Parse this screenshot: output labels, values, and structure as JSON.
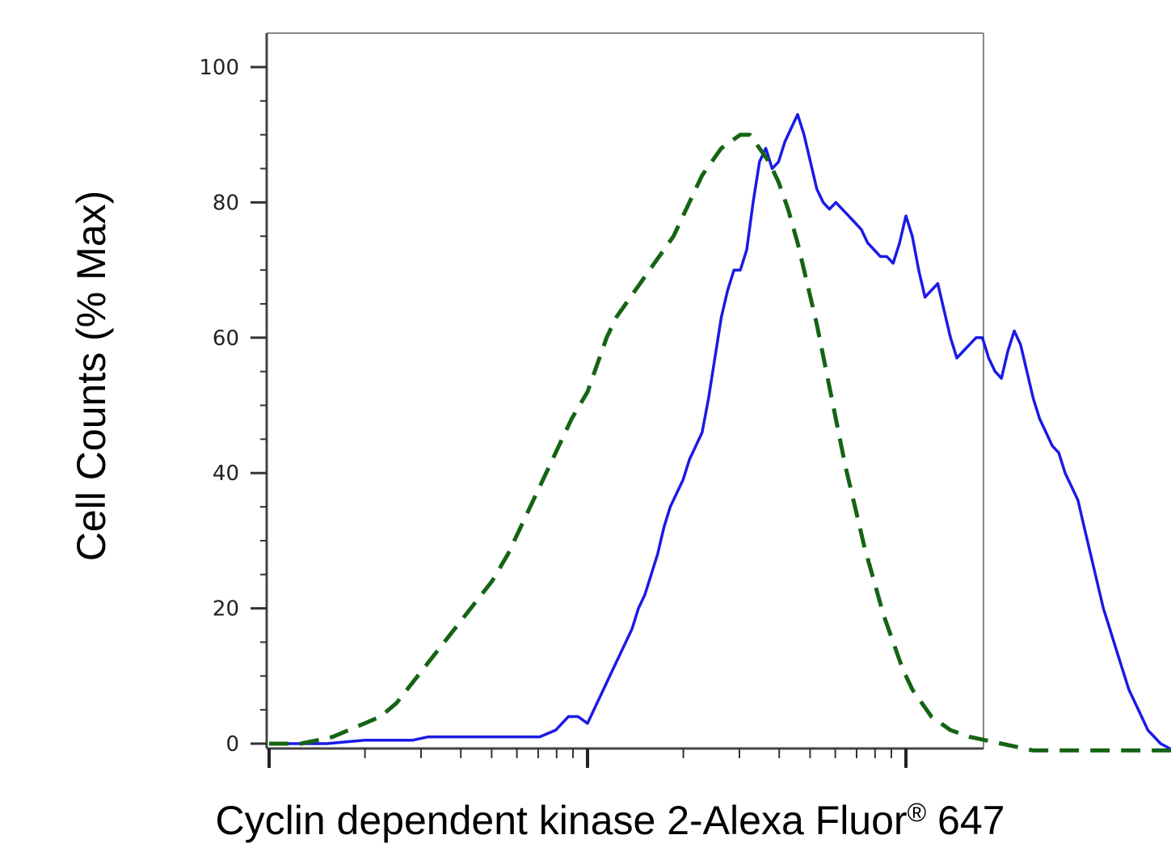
{
  "chart_data": {
    "type": "line",
    "title": "",
    "xlabel_main": "Cyclin dependent kinase 2-Alexa Fluor",
    "xlabel_reg": "®",
    "xlabel_tail": " 647",
    "ylabel": "Cell Counts (% Max)",
    "x_scale": "log",
    "x_decades": [
      0,
      3
    ],
    "xlim": [
      0,
      3.25
    ],
    "ylim": [
      -1.5,
      105
    ],
    "y_ticks": [
      "0",
      "20",
      "40",
      "60",
      "80",
      "100"
    ],
    "y_tick_values": [
      0,
      20,
      40,
      60,
      80,
      100
    ],
    "grid": false,
    "legend": "none",
    "series": [
      {
        "color": "#1a1ae6",
        "style": "solid",
        "x": [
          0.0,
          0.08,
          0.18,
          0.3,
          0.35,
          0.45,
          0.5,
          0.56,
          0.59,
          0.62,
          0.65,
          0.7,
          0.75,
          0.8,
          0.85,
          0.9,
          0.94,
          0.97,
          1.0,
          1.03,
          1.06,
          1.08,
          1.1,
          1.12,
          1.14,
          1.16,
          1.18,
          1.2,
          1.22,
          1.24,
          1.26,
          1.28,
          1.3,
          1.32,
          1.34,
          1.36,
          1.38,
          1.4,
          1.42,
          1.44,
          1.46,
          1.48,
          1.5,
          1.52,
          1.54,
          1.56,
          1.58,
          1.6,
          1.62,
          1.64,
          1.66,
          1.68,
          1.7,
          1.72,
          1.74,
          1.76,
          1.78,
          1.8,
          1.82,
          1.84,
          1.86,
          1.88,
          1.9,
          1.92,
          1.94,
          1.96,
          1.98,
          2.0,
          2.02,
          2.04,
          2.06,
          2.08,
          2.1,
          2.12,
          2.14,
          2.16,
          2.18,
          2.2,
          2.22,
          2.24,
          2.26,
          2.28,
          2.3,
          2.32,
          2.34,
          2.36,
          2.38,
          2.4,
          2.42,
          2.44,
          2.46,
          2.48,
          2.5,
          2.52,
          2.54,
          2.56,
          2.58,
          2.6,
          2.62,
          2.64,
          2.66,
          2.68,
          2.7,
          2.72,
          2.74,
          2.76,
          2.8,
          2.84,
          2.88,
          2.92,
          2.96,
          3.0,
          3.04,
          3.08,
          3.12,
          3.16,
          3.2,
          3.23,
          3.25
        ],
        "y": [
          0,
          0,
          0,
          0.5,
          0.5,
          0.5,
          1,
          1,
          1,
          1,
          1,
          1,
          1,
          1,
          1,
          2,
          4,
          4,
          3,
          6,
          9,
          11,
          13,
          15,
          17,
          20,
          22,
          25,
          28,
          32,
          35,
          37,
          39,
          42,
          44,
          46,
          51,
          57,
          63,
          67,
          70,
          70,
          73,
          80,
          86,
          88,
          85,
          86,
          89,
          91,
          93,
          90,
          86,
          82,
          80,
          79,
          80,
          79,
          78,
          77,
          76,
          74,
          73,
          72,
          72,
          71,
          74,
          78,
          75,
          70,
          66,
          67,
          68,
          64,
          60,
          57,
          58,
          59,
          60,
          60,
          57,
          55,
          54,
          58,
          61,
          59,
          55,
          51,
          48,
          46,
          44,
          43,
          40,
          38,
          36,
          32,
          28,
          24,
          20,
          17,
          14,
          11,
          8,
          6,
          4,
          2,
          0,
          -1,
          -1,
          -1,
          -1,
          -1,
          -1,
          -1,
          -1,
          -1,
          -1,
          -1,
          -1
        ],
        "x_extra_note": ""
      },
      {
        "color": "#146414",
        "style": "dashed",
        "x": [
          0.0,
          0.1,
          0.2,
          0.25,
          0.3,
          0.35,
          0.4,
          0.45,
          0.5,
          0.55,
          0.6,
          0.65,
          0.7,
          0.75,
          0.8,
          0.85,
          0.9,
          0.95,
          1.0,
          1.03,
          1.06,
          1.09,
          1.12,
          1.15,
          1.18,
          1.21,
          1.24,
          1.27,
          1.3,
          1.33,
          1.36,
          1.39,
          1.42,
          1.45,
          1.48,
          1.51,
          1.54,
          1.57,
          1.6,
          1.63,
          1.66,
          1.69,
          1.72,
          1.75,
          1.78,
          1.81,
          1.84,
          1.87,
          1.9,
          1.93,
          1.96,
          1.99,
          2.02,
          2.05,
          2.08,
          2.11,
          2.14,
          2.17,
          2.2,
          2.25,
          2.3,
          2.35,
          2.4,
          2.45,
          2.5,
          2.6,
          2.7,
          2.8,
          2.9,
          3.0,
          3.1
        ],
        "y": [
          0,
          0,
          1,
          2,
          3,
          4,
          6,
          9,
          12,
          15,
          18,
          21,
          24,
          28,
          33,
          38,
          43,
          48,
          52,
          56,
          60,
          63,
          65,
          67,
          69,
          71,
          73,
          75,
          78,
          81,
          84,
          86,
          88,
          89,
          90,
          90,
          88,
          86,
          83,
          79,
          74,
          68,
          62,
          55,
          48,
          41,
          35,
          29,
          24,
          19,
          15,
          11,
          8,
          6,
          4,
          3,
          2,
          1.5,
          1,
          0.5,
          0,
          -0.5,
          -1,
          -1,
          -1,
          -1,
          -1,
          -1,
          -1,
          -1,
          -1
        ]
      }
    ]
  }
}
